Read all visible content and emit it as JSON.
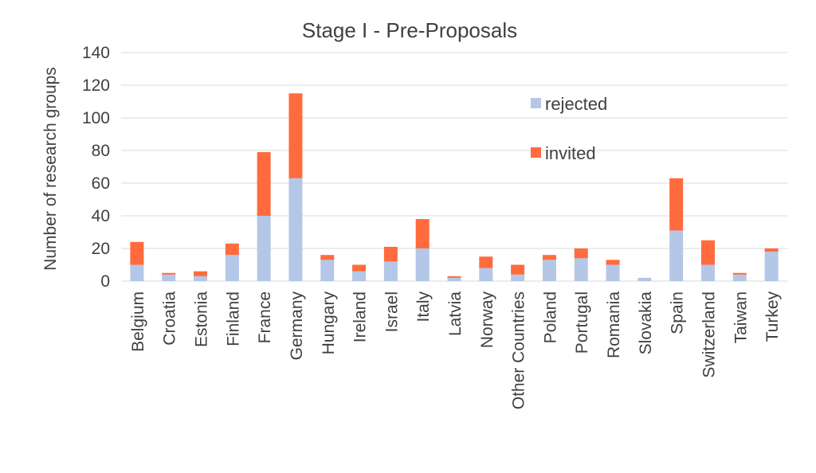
{
  "chart_data": {
    "type": "bar",
    "stacked": true,
    "title": "Stage I - Pre-Proposals",
    "xlabel": "",
    "ylabel": "Number of research groups",
    "ylim": [
      0,
      140
    ],
    "yticks": [
      0,
      20,
      40,
      60,
      80,
      100,
      120,
      140
    ],
    "grid": true,
    "legend_position": "top-right",
    "categories": [
      "Belgium",
      "Croatia",
      "Estonia",
      "Finland",
      "France",
      "Germany",
      "Hungary",
      "Ireland",
      "Israel",
      "Italy",
      "Latvia",
      "Norway",
      "Other Countries",
      "Poland",
      "Portugal",
      "Romania",
      "Slovakia",
      "Spain",
      "Switzerland",
      "Taiwan",
      "Turkey"
    ],
    "series": [
      {
        "name": "rejected",
        "color": "#b4c7e7",
        "values": [
          10,
          4,
          3,
          16,
          40,
          63,
          13,
          6,
          12,
          20,
          2,
          8,
          4,
          13,
          14,
          10,
          2,
          31,
          10,
          4,
          18
        ]
      },
      {
        "name": "invited",
        "color": "#ff6b3d",
        "values": [
          14,
          1,
          3,
          7,
          39,
          52,
          3,
          4,
          9,
          18,
          1,
          7,
          6,
          3,
          6,
          3,
          0,
          32,
          15,
          1,
          2
        ]
      }
    ]
  }
}
